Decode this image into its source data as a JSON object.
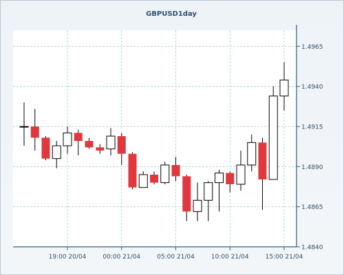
{
  "colors": {
    "plot_background": "#ffffff",
    "frame_background": "#f3f6f9",
    "grid": "#9fd3d3",
    "axis": "#2f5d85",
    "bull_fill": "#ffffff",
    "bear_fill": "#e0393d",
    "candle_outline": "#000000",
    "text": "#2f4f6f",
    "title": "#2f4f6f"
  },
  "chart_data": {
    "type": "candlestick",
    "title": "GBPUSD1day",
    "xlabel": "",
    "ylabel": "",
    "ylim": [
      1.484,
      1.4975
    ],
    "grid": true,
    "y_axis_position": "right",
    "y_ticks": [
      "1.4840",
      "1.4865",
      "1.4890",
      "1.4915",
      "1.4940",
      "1.4965"
    ],
    "x_ticks": [
      {
        "label": "19:00 20/04",
        "index": 4
      },
      {
        "label": "00:00 21/04",
        "index": 9
      },
      {
        "label": "05:00 21/04",
        "index": 14
      },
      {
        "label": "10:00 21/04",
        "index": 19
      },
      {
        "label": "15:00 21/04",
        "index": 24
      }
    ],
    "series": [
      {
        "candles": [
          {
            "o": 1.4915,
            "h": 1.493,
            "l": 1.4903,
            "c": 1.4915
          },
          {
            "o": 1.4915,
            "h": 1.4926,
            "l": 1.49,
            "c": 1.4908
          },
          {
            "o": 1.4908,
            "h": 1.4909,
            "l": 1.4894,
            "c": 1.4895
          },
          {
            "o": 1.4895,
            "h": 1.4906,
            "l": 1.4889,
            "c": 1.4903
          },
          {
            "o": 1.4903,
            "h": 1.4915,
            "l": 1.4898,
            "c": 1.4911
          },
          {
            "o": 1.4911,
            "h": 1.4913,
            "l": 1.4897,
            "c": 1.4906
          },
          {
            "o": 1.4906,
            "h": 1.4908,
            "l": 1.4901,
            "c": 1.4902
          },
          {
            "o": 1.4902,
            "h": 1.4904,
            "l": 1.4898,
            "c": 1.49
          },
          {
            "o": 1.4901,
            "h": 1.4914,
            "l": 1.4897,
            "c": 1.4909
          },
          {
            "o": 1.4909,
            "h": 1.4911,
            "l": 1.4891,
            "c": 1.4898
          },
          {
            "o": 1.4898,
            "h": 1.4899,
            "l": 1.4876,
            "c": 1.4877
          },
          {
            "o": 1.4877,
            "h": 1.4887,
            "l": 1.4877,
            "c": 1.4885
          },
          {
            "o": 1.4885,
            "h": 1.4887,
            "l": 1.4879,
            "c": 1.488
          },
          {
            "o": 1.488,
            "h": 1.4893,
            "l": 1.4879,
            "c": 1.4891
          },
          {
            "o": 1.4891,
            "h": 1.4896,
            "l": 1.4881,
            "c": 1.4884
          },
          {
            "o": 1.4884,
            "h": 1.4885,
            "l": 1.4856,
            "c": 1.4862
          },
          {
            "o": 1.4862,
            "h": 1.488,
            "l": 1.4856,
            "c": 1.4869
          },
          {
            "o": 1.4869,
            "h": 1.4881,
            "l": 1.4856,
            "c": 1.488
          },
          {
            "o": 1.488,
            "h": 1.4888,
            "l": 1.4862,
            "c": 1.4886
          },
          {
            "o": 1.4886,
            "h": 1.4887,
            "l": 1.4874,
            "c": 1.4879
          },
          {
            "o": 1.4879,
            "h": 1.49,
            "l": 1.4875,
            "c": 1.4891
          },
          {
            "o": 1.4891,
            "h": 1.491,
            "l": 1.4887,
            "c": 1.4905
          },
          {
            "o": 1.4905,
            "h": 1.4908,
            "l": 1.4863,
            "c": 1.4882
          },
          {
            "o": 1.4882,
            "h": 1.494,
            "l": 1.4882,
            "c": 1.4934
          },
          {
            "o": 1.4934,
            "h": 1.4955,
            "l": 1.4925,
            "c": 1.4944
          }
        ]
      }
    ]
  }
}
